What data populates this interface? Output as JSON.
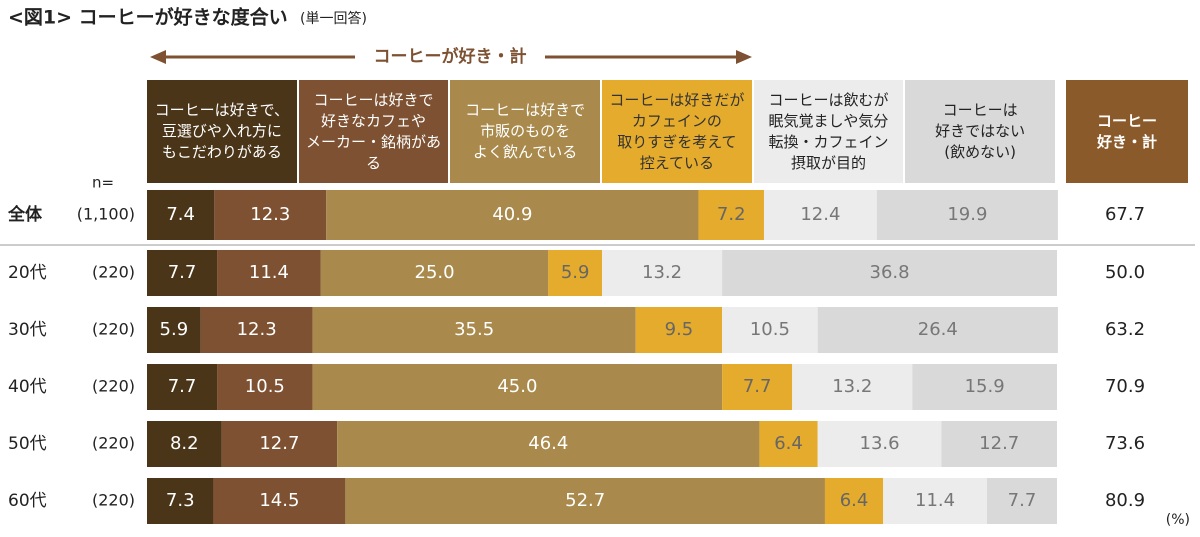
{
  "chart_data": {
    "type": "stacked-bar",
    "title": "<図1> コーヒーが好きな度合い",
    "subtitle": "(単一回答)",
    "annotation": "コーヒーが好き・計",
    "n_label": "n=",
    "unit_label": "(%)",
    "categories": [
      "全体",
      "20代",
      "30代",
      "40代",
      "50代",
      "60代"
    ],
    "n_labels": [
      "(1,100)",
      "(220)",
      "(220)",
      "(220)",
      "(220)",
      "(220)"
    ],
    "xlim": [
      0,
      100
    ],
    "series": [
      {
        "name": "コーヒーは好きで、\n豆選びや入れ方に\nもこだわりがある",
        "color": "#4a3519",
        "values": [
          7.4,
          7.7,
          5.9,
          7.7,
          8.2,
          7.3
        ],
        "value_labels": [
          "7.4",
          "7.7",
          "5.9",
          "7.7",
          "8.2",
          "7.3"
        ]
      },
      {
        "name": "コーヒーは好きで\n好きなカフェや\nメーカー・銘柄がある",
        "color": "#7d5131",
        "values": [
          12.3,
          11.4,
          12.3,
          10.5,
          12.7,
          14.5
        ],
        "value_labels": [
          "12.3",
          "11.4",
          "12.3",
          "10.5",
          "12.7",
          "14.5"
        ]
      },
      {
        "name": "コーヒーは好きで\n市販のものを\nよく飲んでいる",
        "color": "#a98a4c",
        "values": [
          40.9,
          25.0,
          35.5,
          45.0,
          46.4,
          52.7
        ],
        "value_labels": [
          "40.9",
          "25.0",
          "35.5",
          "45.0",
          "46.4",
          "52.7"
        ]
      },
      {
        "name": "コーヒーは好きだが\nカフェインの\n取りすぎを考えて\n控えている",
        "color": "#e4ab2c",
        "values": [
          7.2,
          5.9,
          9.5,
          7.7,
          6.4,
          6.4
        ],
        "value_labels": [
          "7.2",
          "5.9",
          "9.5",
          "7.7",
          "6.4",
          "6.4"
        ]
      },
      {
        "name": "コーヒーは飲むが\n眠気覚ましや気分\n転換・カフェイン\n摂取が目的",
        "color": "#ececec",
        "values": [
          12.4,
          13.2,
          10.5,
          13.2,
          13.6,
          11.4
        ],
        "value_labels": [
          "12.4",
          "13.2",
          "10.5",
          "13.2",
          "13.6",
          "11.4"
        ]
      },
      {
        "name": "コーヒーは\n好きではない\n(飲めない)",
        "color": "#d9d9d9",
        "values": [
          19.9,
          36.8,
          26.4,
          15.9,
          12.7,
          7.7
        ],
        "value_labels": [
          "19.9",
          "36.8",
          "26.4",
          "15.9",
          "12.7",
          "7.7"
        ]
      }
    ],
    "totals": {
      "name": "コーヒー\n好き・計",
      "color": "#8b5a2b",
      "values": [
        67.7,
        50.0,
        63.2,
        70.9,
        73.6,
        80.9
      ],
      "value_labels": [
        "67.7",
        "50.0",
        "63.2",
        "70.9",
        "73.6",
        "80.9"
      ]
    }
  }
}
